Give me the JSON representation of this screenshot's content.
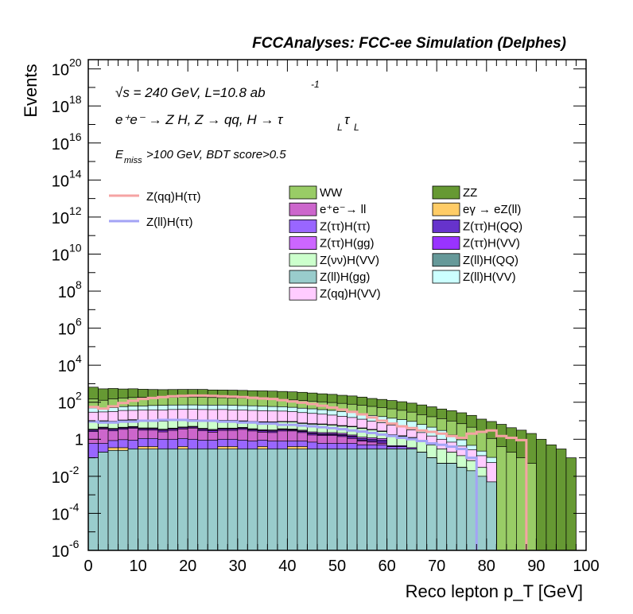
{
  "chart_data": {
    "type": "area",
    "title": "FCCAnalyses: FCC-ee Simulation (Delphes)",
    "xlabel": "Reco lepton p_T [GeV]",
    "ylabel": "Events",
    "xlim": [
      0,
      100
    ],
    "ylim_log10": [
      -6,
      20.5
    ],
    "log_y": true,
    "x_ticks": [
      0,
      10,
      20,
      30,
      40,
      50,
      60,
      70,
      80,
      90,
      100
    ],
    "y_ticks": [
      {
        "base": "10",
        "exp": "20",
        "pow": 20
      },
      {
        "base": "10",
        "exp": "18",
        "pow": 18
      },
      {
        "base": "10",
        "exp": "16",
        "pow": 16
      },
      {
        "base": "10",
        "exp": "14",
        "pow": 14
      },
      {
        "base": "10",
        "exp": "12",
        "pow": 12
      },
      {
        "base": "10",
        "exp": "10",
        "pow": 10
      },
      {
        "base": "10",
        "exp": "8",
        "pow": 8
      },
      {
        "base": "10",
        "exp": "6",
        "pow": 6
      },
      {
        "base": "10",
        "exp": "4",
        "pow": 4
      },
      {
        "base": "10",
        "exp": "2",
        "pow": 2
      },
      {
        "base": "1",
        "exp": "",
        "pow": 0
      },
      {
        "base": "10",
        "exp": "-2",
        "pow": -2
      },
      {
        "base": "10",
        "exp": "-4",
        "pow": -4
      },
      {
        "base": "10",
        "exp": "-6",
        "pow": -6
      }
    ],
    "annotations": {
      "energy": "√s = 240 GeV, L=10.8 ab",
      "energy_sup": "-1",
      "process": "e⁺e⁻ → Z H, Z → qq, H → τ",
      "process_sub1": "L",
      "process_tau2": "τ",
      "process_sub2": "L",
      "cut_pre": "E",
      "cut_sub": "miss",
      "cut_post": ">100 GeV, BDT score>0.5"
    },
    "signals": [
      {
        "name": "Z(qq)H(ττ)",
        "color": "#f5a3a3",
        "values": [
          55,
          45,
          60,
          90,
          120,
          150,
          170,
          190,
          210,
          220,
          230,
          230,
          220,
          210,
          200,
          190,
          175,
          160,
          150,
          130,
          110,
          95,
          80,
          65,
          52,
          40,
          30,
          22,
          15,
          10,
          7,
          5,
          4,
          3,
          2.5,
          2,
          1.5,
          1.2,
          2,
          2.5,
          3,
          1.5,
          1.2,
          0.9
        ]
      },
      {
        "name": "Z(ll)H(ττ)",
        "color": "#a3a3f5",
        "values": [
          9,
          8,
          8,
          9,
          9,
          10,
          10,
          11,
          11,
          11,
          10,
          10,
          10,
          9,
          9,
          8,
          8,
          7,
          7,
          6,
          6,
          5.5,
          5,
          4.5,
          4,
          3.5,
          3,
          2.6,
          2.2,
          1.8,
          1.5,
          1.2,
          1,
          0.8,
          0.6,
          0.5,
          0.4,
          0.3,
          0.1
        ]
      }
    ],
    "stack": [
      {
        "name": "Z(ll)H(gg)",
        "color": "#99cccc",
        "values": [
          0.1,
          0.2,
          0.25,
          0.25,
          0.3,
          0.3,
          0.3,
          0.3,
          0.3,
          0.3,
          0.3,
          0.3,
          0.3,
          0.3,
          0.3,
          0.3,
          0.3,
          0.3,
          0.3,
          0.3,
          0.3,
          0.3,
          0.3,
          0.3,
          0.3,
          0.3,
          0.3,
          0.3,
          0.3,
          0.3,
          0.3,
          0.3,
          0.3,
          0.2,
          0.1,
          0.05,
          0.05,
          0.03,
          0.02,
          0.01,
          0.005
        ]
      },
      {
        "name": "eγ → eZ(ll)",
        "color": "#ffcc66",
        "values": [
          1e-06,
          1e-06,
          0.1,
          0.1,
          1e-06,
          0.1,
          0.1,
          1e-06,
          1e-06,
          0.1,
          1e-06,
          1e-06,
          1e-06,
          0.1,
          0.1,
          1e-06,
          1e-06,
          0.1,
          1e-06,
          1e-06,
          0.1,
          0.1
        ]
      },
      {
        "name": "Z(ττ)H(ττ)",
        "color": "#9966ff",
        "values": [
          0.5,
          0.4,
          0.5,
          0.6,
          0.6,
          0.7,
          0.7,
          0.7,
          0.7,
          0.7,
          0.7,
          0.6,
          0.6,
          0.6,
          0.6,
          0.6,
          0.5,
          0.5,
          0.5,
          0.5,
          0.4,
          0.4,
          0.4,
          0.3,
          0.3,
          0.3,
          0.3,
          0.2,
          0.2,
          0.2,
          0.1,
          0.1
        ]
      },
      {
        "name": "e⁺e⁻→ ll",
        "color": "#cc66cc",
        "values": [
          2,
          3,
          2,
          2.5,
          3,
          2,
          2,
          1.5,
          2,
          2.5,
          3,
          2,
          1.5,
          2,
          2,
          2.5,
          2,
          1.5,
          1.5,
          2,
          2,
          1.5,
          1,
          1,
          1,
          0.8,
          0.5,
          0.3,
          0.2,
          0.1
        ]
      },
      {
        "name": "Z(ττ)H(VV)",
        "color": "#9933ff",
        "values": [
          0.4,
          0.4,
          0.5,
          0.5,
          0.5,
          0.5,
          0.5,
          0.5,
          0.5,
          0.5,
          0.5,
          0.5,
          0.5,
          0.5,
          0.5,
          0.5,
          0.4,
          0.4,
          0.4,
          0.4,
          0.3,
          0.3,
          0.3,
          0.2,
          0.2,
          0.2,
          0.2,
          0.1,
          0.1,
          0.1,
          0.05,
          0.05,
          0.05
        ]
      },
      {
        "name": "Z(ττ)H(QQ)",
        "color": "#6633cc",
        "values": [
          0.2,
          0.2,
          0.2,
          0.2,
          0.2,
          0.2,
          0.2,
          0.2,
          0.2,
          0.2,
          0.2,
          0.2,
          0.2,
          0.2,
          0.2,
          0.2,
          0.2,
          0.2,
          0.2,
          0.2,
          0.2,
          0.2,
          0.2,
          0.2,
          0.2,
          0.2,
          0.2,
          0.2,
          0.2,
          0.2
        ]
      },
      {
        "name": "Z(ττ)H(gg)",
        "color": "#cc66ff",
        "values": [
          0.3,
          0.3,
          0.3,
          0.3,
          0.3,
          0.3,
          0.3,
          0.3,
          0.3,
          0.3,
          0.3,
          0.3,
          0.3,
          0.3,
          0.3,
          0.3,
          0.3,
          0.3,
          0.3,
          0.3,
          0.3,
          0.3,
          0.3,
          0.3,
          0.3,
          0.3,
          0.2,
          0.2,
          0.2,
          0.2
        ]
      },
      {
        "name": "Z(νν)H(VV)",
        "color": "#ccffcc",
        "values": [
          5,
          5,
          5,
          6,
          6,
          6,
          6,
          6,
          6,
          6,
          6,
          6,
          6,
          6,
          6,
          5,
          5,
          5,
          5,
          5,
          5,
          4,
          4,
          4,
          3.5,
          3,
          3,
          2.5,
          2,
          1.5,
          1.2,
          1,
          0.8,
          0.6,
          0.4,
          0.25,
          0.15,
          0.1,
          0.05,
          0.02
        ]
      },
      {
        "name": "Z(ll)H(QQ)",
        "color": "#669999",
        "values": [
          0.5,
          0.5,
          0.5,
          0.5,
          0.5,
          0.5,
          0.5,
          0.5,
          0.5,
          0.5,
          0.5,
          0.5,
          0.5,
          0.5,
          0.5,
          0.5,
          0.5,
          0.5,
          0.5,
          0.5,
          0.5,
          0.5,
          0.5,
          0.4,
          0.4,
          0.4,
          0.3,
          0.3,
          0.2,
          0.2,
          0.1,
          0.1,
          0.1
        ]
      },
      {
        "name": "Z(qq)H(VV)",
        "color": "#ffccff",
        "values": [
          20,
          20,
          22,
          25,
          25,
          27,
          28,
          28,
          30,
          30,
          30,
          30,
          30,
          30,
          28,
          28,
          27,
          26,
          25,
          24,
          22,
          20,
          18,
          16,
          14,
          12,
          10,
          8,
          6,
          5,
          4,
          3,
          2,
          1.5,
          1,
          0.7,
          0.5,
          0.3,
          0.2,
          0.1,
          0.05
        ]
      },
      {
        "name": "Z(ll)H(VV)",
        "color": "#ccffff",
        "values": [
          20,
          18,
          20,
          22,
          25,
          25,
          28,
          30,
          30,
          30,
          30,
          30,
          30,
          30,
          30,
          28,
          28,
          26,
          25,
          24,
          22,
          20,
          19,
          17,
          16,
          14,
          13,
          12,
          10,
          9,
          8,
          7,
          6,
          4,
          3,
          2,
          1,
          0.5,
          0.2,
          0.1,
          0.05
        ]
      },
      {
        "name": "WW",
        "color": "#99cc66",
        "values": [
          100,
          80,
          100,
          110,
          120,
          120,
          120,
          110,
          115,
          120,
          120,
          120,
          110,
          105,
          100,
          100,
          95,
          90,
          90,
          85,
          80,
          75,
          70,
          65,
          60,
          55,
          50,
          45,
          40,
          35,
          30,
          25,
          20,
          15,
          12,
          10,
          8,
          6,
          4,
          2,
          1,
          0.4,
          0.2,
          0.1,
          0.05
        ]
      },
      {
        "name": "ZZ",
        "color": "#669933",
        "values": [
          500,
          400,
          400,
          350,
          350,
          320,
          300,
          300,
          300,
          300,
          300,
          300,
          280,
          280,
          280,
          270,
          260,
          260,
          250,
          240,
          230,
          220,
          200,
          180,
          170,
          150,
          140,
          120,
          100,
          90,
          80,
          70,
          60,
          50,
          40,
          30,
          25,
          20,
          15,
          10,
          8,
          6,
          4,
          3,
          2,
          1,
          0.5,
          0.3,
          0.1
        ]
      }
    ],
    "legend_left": [
      "Z(qq)H(ττ)",
      "Z(ll)H(ττ)"
    ],
    "legend_right": [
      "WW",
      "ZZ",
      "e⁺e⁻→ ll",
      "eγ → eZ(ll)",
      "Z(ττ)H(ττ)",
      "Z(ττ)H(QQ)",
      "Z(ττ)H(gg)",
      "Z(ττ)H(VV)",
      "Z(νν)H(VV)",
      "Z(ll)H(QQ)",
      "Z(ll)H(gg)",
      "Z(ll)H(VV)",
      "Z(qq)H(VV)"
    ]
  }
}
